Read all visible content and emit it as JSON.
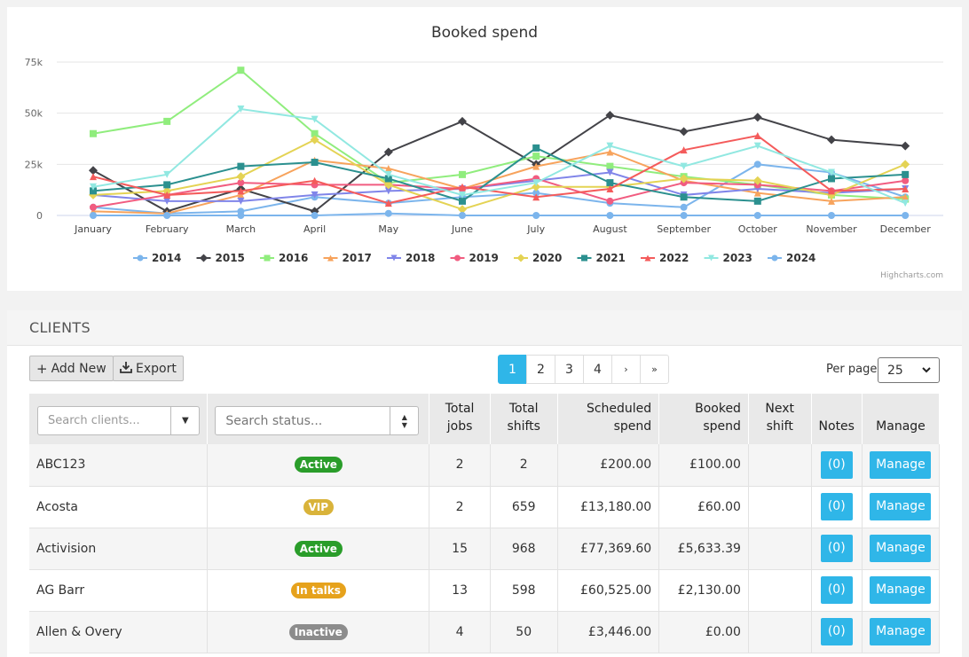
{
  "chart_data": {
    "type": "line",
    "title": "Booked spend",
    "categories": [
      "January",
      "February",
      "March",
      "April",
      "May",
      "June",
      "July",
      "August",
      "September",
      "October",
      "November",
      "December"
    ],
    "y_ticks": [
      "0",
      "25k",
      "50k",
      "75k"
    ],
    "ylim": [
      0,
      75000
    ],
    "grid": true,
    "legend_placement": "bottom-center",
    "credit": "Highcharts.com",
    "series": [
      {
        "name": "2014",
        "color": "#7cb5ec",
        "marker": "circle",
        "values": [
          4000,
          1000,
          2000,
          9000,
          6000,
          9000,
          11000,
          6000,
          4000,
          25000,
          21000,
          9000
        ]
      },
      {
        "name": "2015",
        "color": "#434348",
        "marker": "diamond",
        "values": [
          22000,
          2000,
          13000,
          2000,
          31000,
          46000,
          25000,
          49000,
          41000,
          48000,
          37000,
          34000
        ]
      },
      {
        "name": "2016",
        "color": "#90ed7d",
        "marker": "square",
        "values": [
          40000,
          46000,
          71000,
          40000,
          16000,
          20000,
          29000,
          24000,
          19000,
          15000,
          10000,
          8000
        ]
      },
      {
        "name": "2017",
        "color": "#f7a35c",
        "marker": "triangle",
        "values": [
          2000,
          1000,
          10000,
          27000,
          23000,
          13000,
          24000,
          31000,
          17000,
          11000,
          7000,
          9000
        ]
      },
      {
        "name": "2018",
        "color": "#8085e9",
        "marker": "triangle-down",
        "values": [
          10000,
          7000,
          7000,
          10000,
          12000,
          13000,
          17000,
          21000,
          10000,
          13000,
          11000,
          13000
        ]
      },
      {
        "name": "2019",
        "color": "#f15c80",
        "marker": "circle",
        "values": [
          4000,
          10000,
          16000,
          15000,
          15000,
          13000,
          18000,
          7000,
          16000,
          15000,
          12000,
          17000
        ]
      },
      {
        "name": "2020",
        "color": "#e4d354",
        "marker": "diamond",
        "values": [
          10000,
          12000,
          19000,
          37000,
          15000,
          3000,
          14000,
          14000,
          18000,
          17000,
          10000,
          25000
        ]
      },
      {
        "name": "2021",
        "color": "#2b908f",
        "marker": "square",
        "values": [
          12000,
          15000,
          24000,
          26000,
          18000,
          7000,
          33000,
          16000,
          9000,
          7000,
          18000,
          20000
        ]
      },
      {
        "name": "2022",
        "color": "#f45b5b",
        "marker": "triangle",
        "values": [
          19000,
          10000,
          12000,
          17000,
          6000,
          14000,
          9000,
          13000,
          32000,
          39000,
          12000,
          13000
        ]
      },
      {
        "name": "2023",
        "color": "#91e8e1",
        "marker": "triangle-down",
        "values": [
          14000,
          20000,
          52000,
          47000,
          20000,
          10000,
          16000,
          34000,
          24000,
          34000,
          21000,
          6000
        ]
      },
      {
        "name": "2024",
        "color": "#7cb5ec",
        "marker": "circle",
        "values": [
          0,
          0,
          0,
          0,
          1000,
          0,
          0,
          0,
          0,
          0,
          0,
          0
        ]
      }
    ]
  },
  "clients": {
    "title": "CLIENTS",
    "add_new_label": "Add New",
    "export_label": "Export",
    "pagination": {
      "pages": [
        "1",
        "2",
        "3",
        "4"
      ],
      "active": "1",
      "next": "›",
      "last": "»"
    },
    "per_page_label": "Per page",
    "per_page_value": "25",
    "search_clients_placeholder": "Search clients...",
    "search_status_placeholder": "Search status...",
    "columns": {
      "total_jobs_1": "Total",
      "total_jobs_2": "jobs",
      "total_shifts_1": "Total",
      "total_shifts_2": "shifts",
      "scheduled_1": "Scheduled",
      "scheduled_2": "spend",
      "booked_1": "Booked",
      "booked_2": "spend",
      "next_1": "Next",
      "next_2": "shift",
      "notes": "Notes",
      "manage": "Manage"
    },
    "rows": [
      {
        "name": "ABC123",
        "status": "Active",
        "status_color": "#2a9d2a",
        "jobs": "2",
        "shifts": "2",
        "scheduled": "£200.00",
        "booked": "£100.00",
        "next": "",
        "notes": "(0)",
        "manage": "Manage"
      },
      {
        "name": "Acosta",
        "status": "VIP",
        "status_color": "#d9b33a",
        "jobs": "2",
        "shifts": "659",
        "scheduled": "£13,180.00",
        "booked": "£60.00",
        "next": "",
        "notes": "(0)",
        "manage": "Manage"
      },
      {
        "name": "Activision",
        "status": "Active",
        "status_color": "#2a9d2a",
        "jobs": "15",
        "shifts": "968",
        "scheduled": "£77,369.60",
        "booked": "£5,633.39",
        "next": "",
        "notes": "(0)",
        "manage": "Manage"
      },
      {
        "name": "AG Barr",
        "status": "In talks",
        "status_color": "#e6a21c",
        "jobs": "13",
        "shifts": "598",
        "scheduled": "£60,525.00",
        "booked": "£2,130.00",
        "next": "",
        "notes": "(0)",
        "manage": "Manage"
      },
      {
        "name": "Allen & Overy",
        "status": "Inactive",
        "status_color": "#8c8c8c",
        "jobs": "4",
        "shifts": "50",
        "scheduled": "£3,446.00",
        "booked": "£0.00",
        "next": "",
        "notes": "(0)",
        "manage": "Manage"
      }
    ]
  }
}
